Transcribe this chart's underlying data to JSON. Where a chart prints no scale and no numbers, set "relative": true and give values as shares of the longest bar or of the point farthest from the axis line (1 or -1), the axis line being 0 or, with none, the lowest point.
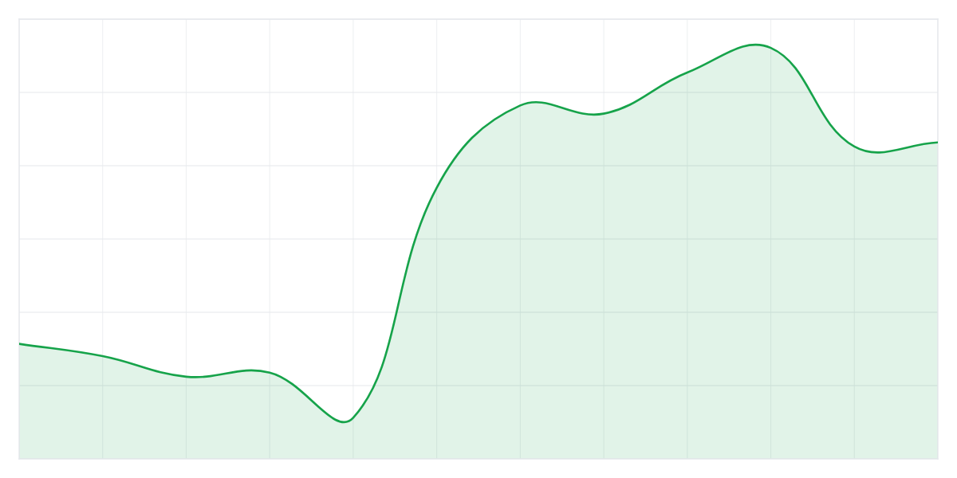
{
  "chart_data": {
    "type": "area",
    "relative": true,
    "grid": true,
    "categories": [
      null,
      null,
      null,
      null,
      null,
      null,
      null,
      null,
      null,
      null,
      null,
      null
    ],
    "series": [
      {
        "color": "#16a34a",
        "values": [
          0.28,
          0.25,
          0.2,
          0.21,
          0.1,
          0.66,
          0.86,
          0.84,
          0.94,
          1,
          0.76,
          0.77
        ]
      }
    ]
  }
}
